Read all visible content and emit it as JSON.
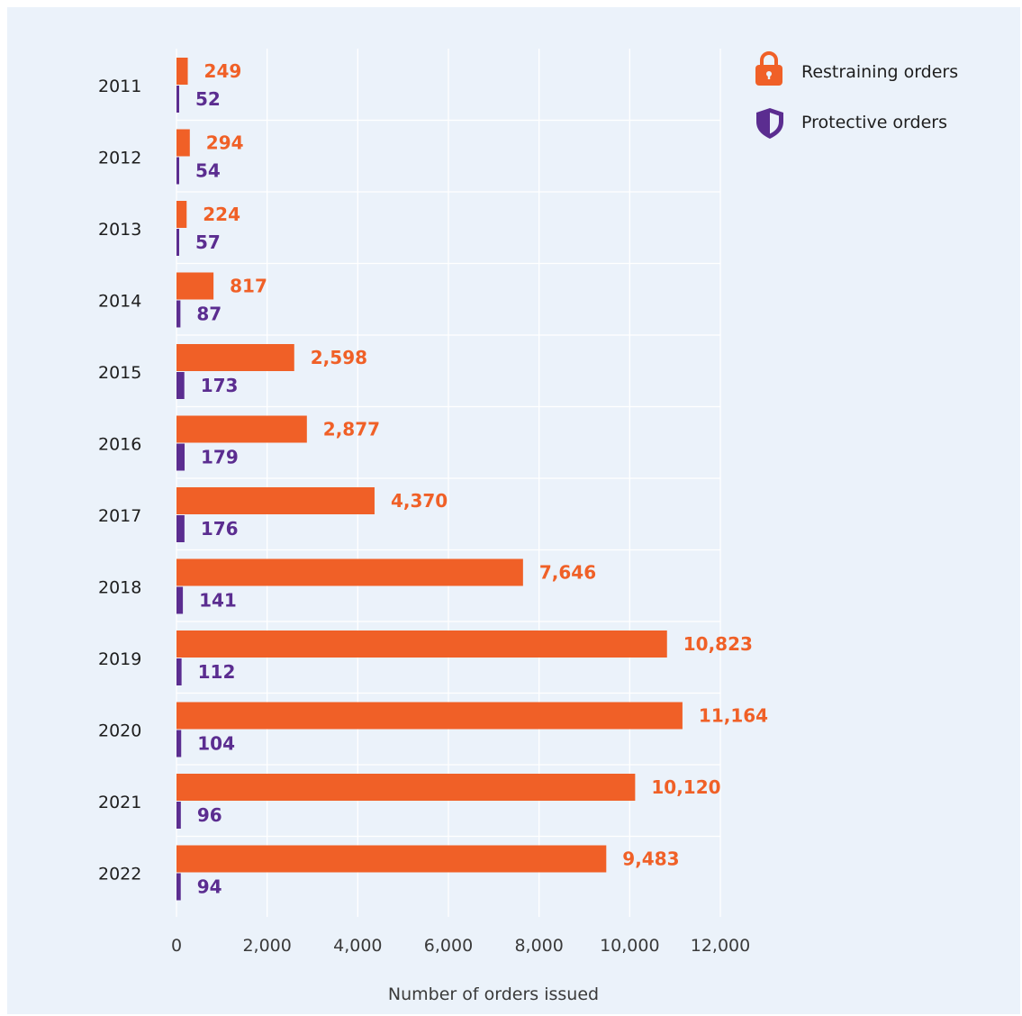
{
  "chart_data": {
    "type": "bar",
    "orientation": "horizontal",
    "categories": [
      "2011",
      "2012",
      "2013",
      "2014",
      "2015",
      "2016",
      "2017",
      "2018",
      "2019",
      "2020",
      "2021",
      "2022"
    ],
    "series": [
      {
        "name": "Restraining orders",
        "color": "#f06027",
        "icon": "lock-icon",
        "values": [
          249,
          294,
          224,
          817,
          2598,
          2877,
          4370,
          7646,
          10823,
          11164,
          10120,
          9483
        ],
        "labels": [
          "249",
          "294",
          "224",
          "817",
          "2,598",
          "2,877",
          "4,370",
          "7,646",
          "10,823",
          "11,164",
          "10,120",
          "9,483"
        ]
      },
      {
        "name": "Protective orders",
        "color": "#5b2d90",
        "icon": "shield-icon",
        "values": [
          52,
          54,
          57,
          87,
          173,
          179,
          176,
          141,
          112,
          104,
          96,
          94
        ],
        "labels": [
          "52",
          "54",
          "57",
          "87",
          "173",
          "179",
          "176",
          "141",
          "112",
          "104",
          "96",
          "94"
        ]
      }
    ],
    "xlabel": "Number of orders issued",
    "ylabel": "",
    "xlim": [
      0,
      12000
    ],
    "xticks": [
      0,
      2000,
      4000,
      6000,
      8000,
      10000,
      12000
    ],
    "xtick_labels": [
      "0",
      "2,000",
      "4,000",
      "6,000",
      "8,000",
      "10,000",
      "12,000"
    ],
    "grid": true,
    "legend_position": "top-right",
    "background": "#ebf2fa"
  }
}
